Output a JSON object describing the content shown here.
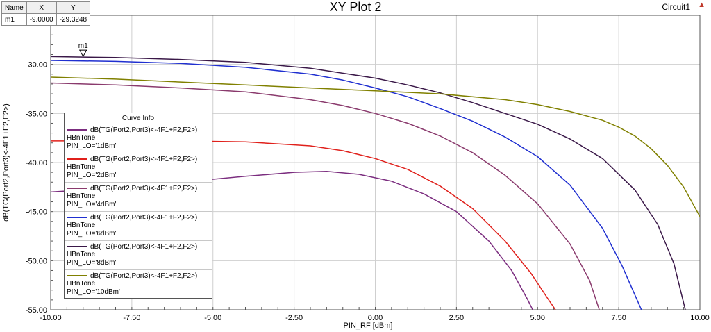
{
  "title": "XY Plot 2",
  "design_name": "Circuit1",
  "marker_table": {
    "headers": [
      "Name",
      "X",
      "Y"
    ],
    "rows": [
      [
        "m1",
        "-9.0000",
        "-29.3248"
      ]
    ]
  },
  "chart_data": {
    "type": "line",
    "title": "XY Plot 2",
    "xlabel": "PIN_RF [dBm]",
    "ylabel": "dB(TG(Port2,Port3)<-4F1+F2,F2>)",
    "xlim": [
      -10,
      10
    ],
    "ylim": [
      -55,
      -25
    ],
    "xticks": [
      -10,
      -7.5,
      -5,
      -2.5,
      0,
      2.5,
      5,
      7.5,
      10
    ],
    "xtick_labels": [
      "-10.00",
      "-7.50",
      "-5.00",
      "-2.50",
      "0.00",
      "2.50",
      "5.00",
      "7.50",
      "10.00"
    ],
    "yticks": [
      -30,
      -35,
      -40,
      -45,
      -50,
      -55
    ],
    "ytick_labels": [
      "-30.00",
      "-35.00",
      "-40.00",
      "-45.00",
      "-50.00",
      "-55.00"
    ],
    "grid": true,
    "legend_title": "Curve Info",
    "legend_position": "left",
    "marker": {
      "name": "m1",
      "x": -9.0,
      "y": -29.3248
    },
    "series": [
      {
        "name": "dB(TG(Port2,Port3)<-4F1+F2,F2>)",
        "lines": [
          "HBnTone",
          "PIN_LO='1dBm'"
        ],
        "color": "#7b2d7f",
        "x": [
          -10,
          -8,
          -6,
          -4,
          -2.5,
          -1.5,
          -0.5,
          0.5,
          1.5,
          2.5,
          3.5,
          4.2,
          4.7,
          4.85
        ],
        "y": [
          -43.0,
          -42.6,
          -42.0,
          -41.4,
          -41.0,
          -40.9,
          -41.2,
          -41.9,
          -43.2,
          -45.0,
          -48.0,
          -51.0,
          -54.0,
          -55.0
        ]
      },
      {
        "name": "dB(TG(Port2,Port3)<-4F1+F2,F2>)",
        "lines": [
          "HBnTone",
          "PIN_LO='2dBm'"
        ],
        "color": "#e0201b",
        "x": [
          -10,
          -8,
          -6,
          -4,
          -2,
          -1,
          0,
          1,
          2,
          3,
          4,
          4.8,
          5.3,
          5.55
        ],
        "y": [
          -37.8,
          -37.8,
          -37.8,
          -37.9,
          -38.3,
          -38.8,
          -39.6,
          -40.7,
          -42.4,
          -44.7,
          -48.0,
          -51.3,
          -53.8,
          -55.0
        ]
      },
      {
        "name": "dB(TG(Port2,Port3)<-4F1+F2,F2>)",
        "lines": [
          "HBnTone",
          "PIN_LO='4dBm'"
        ],
        "color": "#8a3a6d",
        "x": [
          -10,
          -8,
          -6,
          -4,
          -2,
          -1,
          0,
          1,
          2,
          3,
          4,
          5,
          6,
          6.6,
          6.9
        ],
        "y": [
          -31.9,
          -32.1,
          -32.4,
          -32.8,
          -33.6,
          -34.2,
          -35.0,
          -36.0,
          -37.3,
          -39.0,
          -41.3,
          -44.2,
          -48.3,
          -52.0,
          -55.0
        ]
      },
      {
        "name": "dB(TG(Port2,Port3)<-4F1+F2,F2>)",
        "lines": [
          "HBnTone",
          "PIN_LO='6dBm'"
        ],
        "color": "#1f2fd0",
        "x": [
          -10,
          -8,
          -6,
          -4,
          -2,
          -1,
          0,
          1,
          2,
          3,
          4,
          5,
          6,
          7,
          7.6,
          8.2
        ],
        "y": [
          -29.6,
          -29.7,
          -29.9,
          -30.3,
          -31.0,
          -31.6,
          -32.4,
          -33.3,
          -34.5,
          -35.8,
          -37.4,
          -39.4,
          -42.3,
          -46.7,
          -50.5,
          -55.0
        ]
      },
      {
        "name": "dB(TG(Port2,Port3)<-4F1+F2,F2>)",
        "lines": [
          "HBnTone",
          "PIN_LO='8dBm'"
        ],
        "color": "#3a1848",
        "x": [
          -10,
          -8,
          -6,
          -4,
          -2,
          0,
          1,
          2,
          3,
          4,
          5,
          6,
          7,
          8,
          8.7,
          9.2,
          9.55
        ],
        "y": [
          -29.2,
          -29.3,
          -29.5,
          -29.8,
          -30.4,
          -31.4,
          -32.1,
          -32.9,
          -33.9,
          -35.0,
          -36.1,
          -37.6,
          -39.6,
          -42.8,
          -46.3,
          -50.3,
          -55.0
        ]
      },
      {
        "name": "dB(TG(Port2,Port3)<-4F1+F2,F2>)",
        "lines": [
          "HBnTone",
          "PIN_LO='10dBm'"
        ],
        "color": "#808000",
        "x": [
          -10,
          -8,
          -6,
          -4,
          -2,
          0,
          2,
          4,
          5,
          6,
          7,
          7.5,
          8,
          8.5,
          9,
          9.5,
          10
        ],
        "y": [
          -31.3,
          -31.5,
          -31.8,
          -32.1,
          -32.4,
          -32.7,
          -33.0,
          -33.6,
          -34.1,
          -34.8,
          -35.7,
          -36.4,
          -37.3,
          -38.6,
          -40.3,
          -42.5,
          -45.5
        ]
      }
    ]
  }
}
